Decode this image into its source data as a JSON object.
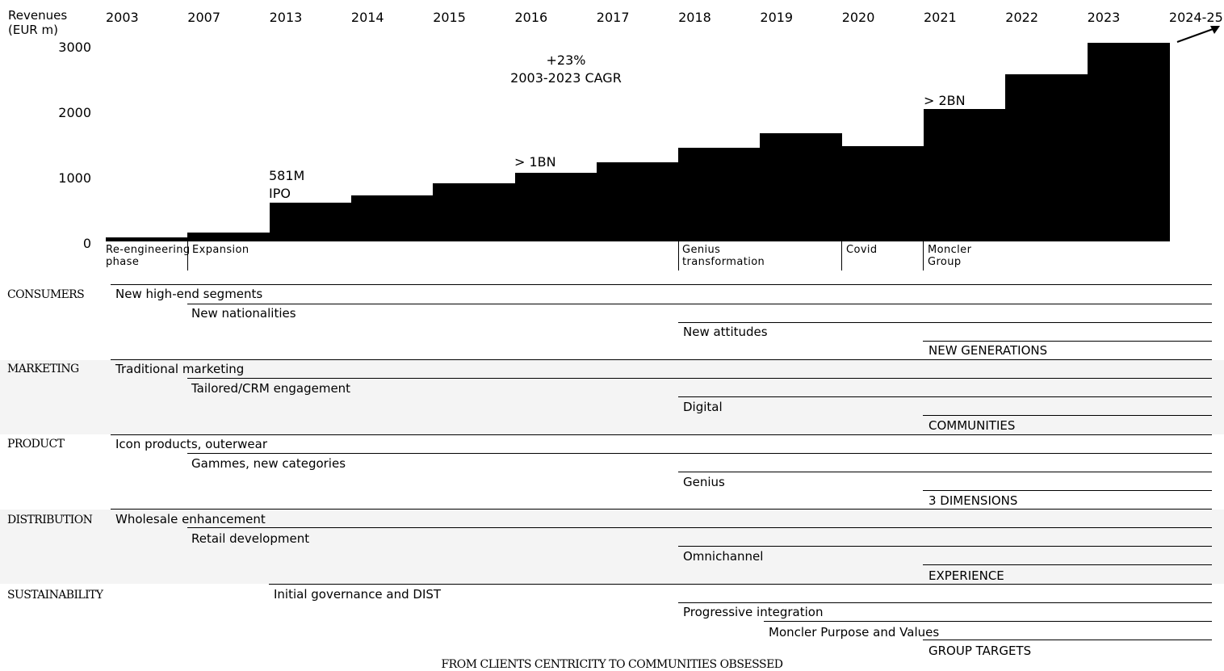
{
  "chart_data": {
    "type": "bar",
    "ylabel": "Revenues\n(EUR m)",
    "yticks": [
      "0",
      "1000",
      "2000",
      "3000"
    ],
    "ylim": [
      0,
      3000
    ],
    "categories": [
      "2003",
      "2007",
      "2013",
      "2014",
      "2015",
      "2016",
      "2017",
      "2018",
      "2019",
      "2020",
      "2021",
      "2022",
      "2023",
      "2024-25"
    ],
    "values": [
      65,
      130,
      581,
      695,
      880,
      1040,
      1195,
      1420,
      1630,
      1440,
      2000,
      2520,
      3000,
      null
    ],
    "annotations": {
      "cagr_value": "+23%",
      "cagr_period": "2003-2023 CAGR",
      "ipo_value": "581M",
      "ipo_label": "IPO",
      "bn1": "> 1BN",
      "bn2": "> 2BN"
    },
    "phases": [
      {
        "line1": "Re-engineering",
        "line2": "phase"
      },
      {
        "line1": "Expansion",
        "line2": ""
      },
      {
        "line1": "Genius",
        "line2": "transformation"
      },
      {
        "line1": "Covid",
        "line2": ""
      },
      {
        "line1": "Moncler",
        "line2": "Group"
      }
    ]
  },
  "sections": [
    {
      "label": "CONSUMERS",
      "items": [
        "New high-end segments",
        "New nationalities",
        "New attitudes",
        "NEW GENERATIONS"
      ]
    },
    {
      "label": "MARKETING",
      "items": [
        "Traditional marketing",
        "Tailored/CRM engagement",
        "Digital",
        "COMMUNITIES"
      ]
    },
    {
      "label": "PRODUCT",
      "items": [
        "Icon products, outerwear",
        "Gammes, new categories",
        "Genius",
        "3 DIMENSIONS"
      ]
    },
    {
      "label": "DISTRIBUTION",
      "items": [
        "Wholesale enhancement",
        "Retail development",
        "Omnichannel",
        "EXPERIENCE"
      ]
    },
    {
      "label": "SUSTAINABILITY",
      "items": [
        "Initial governance and DIST",
        "Progressive integration",
        "Moncler Purpose and Values",
        "GROUP TARGETS"
      ]
    }
  ],
  "footer": "FROM CLIENTS CENTRICITY TO COMMUNITIES OBSESSED"
}
